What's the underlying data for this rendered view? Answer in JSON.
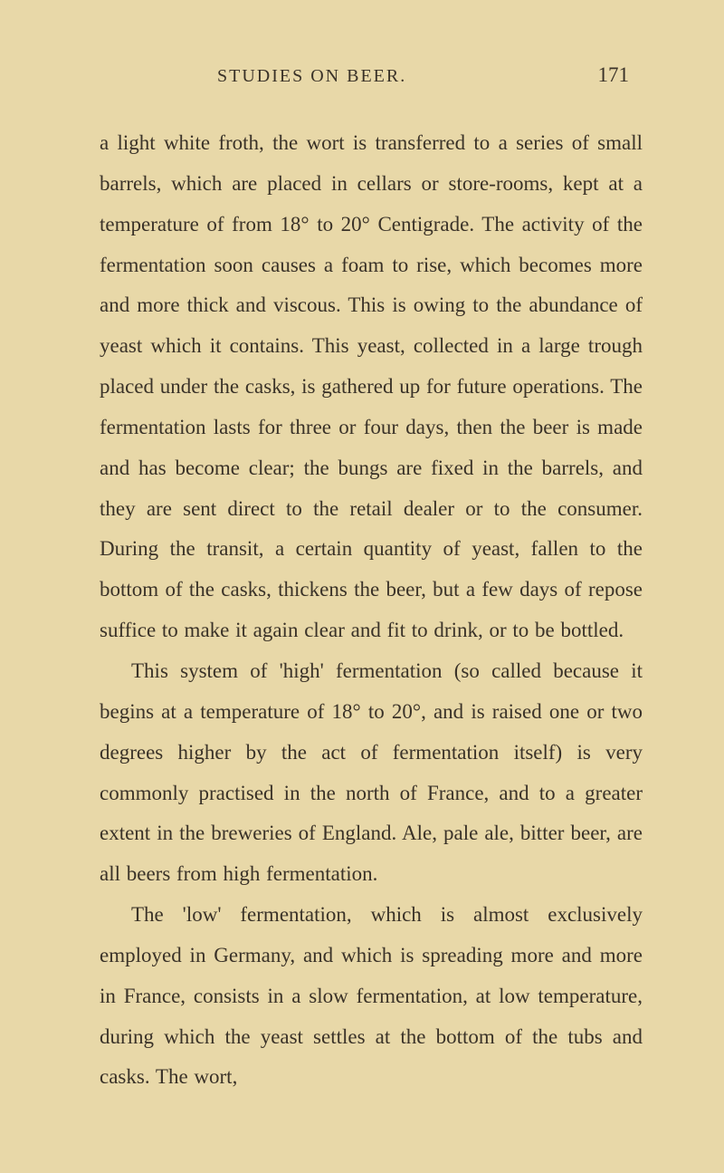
{
  "page": {
    "background_color": "#e8d8a8",
    "text_color": "#3a3228",
    "font_family": "'Times New Roman', Georgia, serif",
    "body_fontsize": 23,
    "header_fontsize": 20,
    "line_height": 1.95
  },
  "header": {
    "title": "STUDIES ON BEER.",
    "page_number": "171"
  },
  "paragraphs": [
    {
      "text": "a light white froth, the wort is transferred to a series of small barrels, which are placed in cellars or store-rooms, kept at a temperature of from 18° to 20° Centigrade. The activity of the fermentation soon causes a foam to rise, which becomes more and more thick and viscous. This is owing to the abundance of yeast which it contains. This yeast, collected in a large trough placed under the casks, is gathered up for future operations. The fermentation lasts for three or four days, then the beer is made and has become clear; the bungs are fixed in the barrels, and they are sent direct to the retail dealer or to the consumer. During the transit, a certain quantity of yeast, fallen to the bottom of the casks, thickens the beer, but a few days of repose suffice to make it again clear and fit to drink, or to be bottled.",
      "indent": false
    },
    {
      "text": "This system of 'high' fermentation (so called because it begins at a temperature of 18° to 20°, and is raised one or two degrees higher by the act of fermentation itself) is very commonly practised in the north of France, and to a greater extent in the breweries of England. Ale, pale ale, bitter beer, are all beers from high fermentation.",
      "indent": true
    },
    {
      "text": "The 'low' fermentation, which is almost exclusively employed in Germany, and which is spreading more and more in France, consists in a slow fermentation, at low temperature, during which the yeast settles at the bottom of the tubs and casks. The wort,",
      "indent": true
    }
  ]
}
